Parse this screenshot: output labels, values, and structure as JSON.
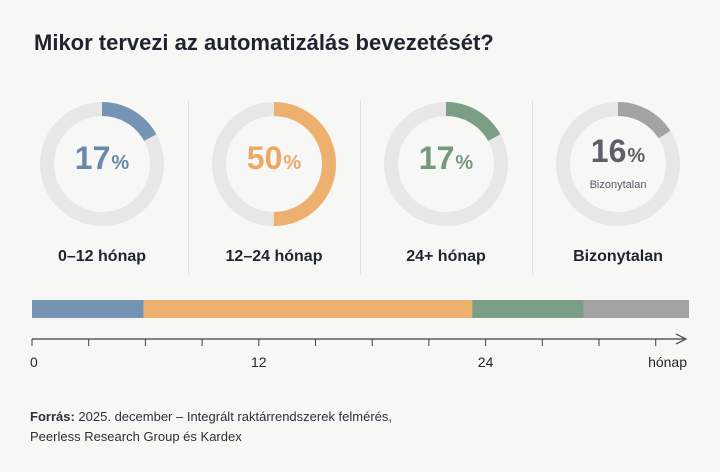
{
  "chart_data": {
    "type": "donut",
    "title": "Mikor tervezi az automatizálás bevezetését?",
    "unit": "%",
    "segments": [
      {
        "label": "0–12 hónap",
        "value": 17,
        "color": "#7593b2",
        "text_color": "#6b88a8",
        "sublabel": ""
      },
      {
        "label": "12–24 hónap",
        "value": 50,
        "color": "#eeb06e",
        "text_color": "#eba968",
        "sublabel": ""
      },
      {
        "label": "24+ hónap",
        "value": 17,
        "color": "#7b9e84",
        "text_color": "#749a7e",
        "sublabel": ""
      },
      {
        "label": "Bizonytalan",
        "value": 16,
        "color": "#a3a4a2",
        "text_color": "#5d6066",
        "sublabel": "Bizonytalan"
      }
    ],
    "ring_track_color": "#e7e7e5",
    "timeline": {
      "ticks": [
        0,
        3,
        6,
        9,
        12,
        15,
        18,
        21,
        24,
        27,
        30,
        33,
        36
      ],
      "labels": [
        {
          "value": 0,
          "text": "0"
        },
        {
          "value": 12,
          "text": "12"
        },
        {
          "value": 24,
          "text": "24"
        }
      ],
      "axis_label": "hónap",
      "range": [
        0,
        36
      ]
    }
  },
  "source": {
    "label": "Forrás:",
    "line1": "2025. december – Integrált raktárrendszerek felmérés,",
    "line2": "Peerless Research Group és Kardex"
  }
}
